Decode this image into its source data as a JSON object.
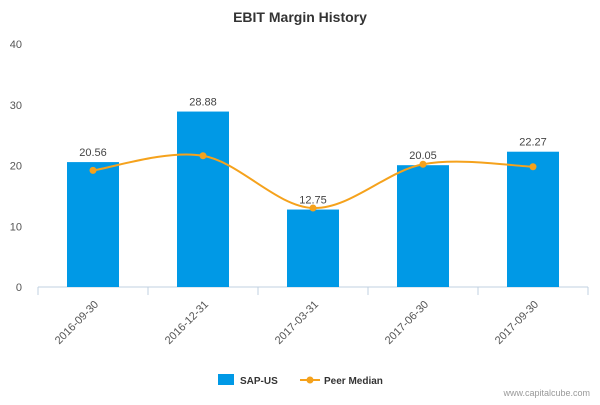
{
  "chart_data": {
    "type": "bar",
    "title": "EBIT Margin History",
    "xlabel": "",
    "ylabel": "",
    "categories": [
      "2016-09-30",
      "2016-12-31",
      "2017-03-31",
      "2017-06-30",
      "2017-09-30"
    ],
    "series": [
      {
        "name": "SAP-US",
        "type": "bar",
        "values": [
          20.56,
          28.88,
          12.75,
          20.05,
          22.27
        ],
        "data_labels": [
          "20.56",
          "28.88",
          "12.75",
          "20.05",
          "22.27"
        ],
        "color": "#0099e6"
      },
      {
        "name": "Peer Median",
        "type": "line",
        "smooth": true,
        "values": [
          19.2,
          21.6,
          13.0,
          20.2,
          19.8
        ],
        "color": "#f5a21c"
      }
    ],
    "ylim": [
      0,
      40
    ],
    "yticks": [
      0,
      10,
      20,
      30,
      40
    ],
    "grid": false,
    "legend_position": "bottom"
  },
  "watermark": "www.capitalcube.com"
}
